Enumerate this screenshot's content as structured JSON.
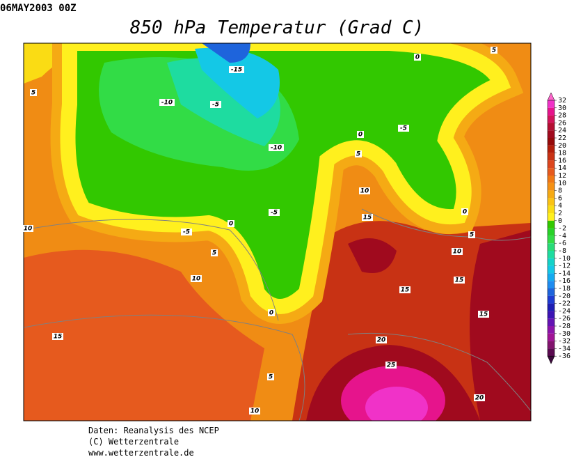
{
  "map": {
    "timestamp": "06MAY2003 00Z",
    "title": "850 hPa Temperatur (Grad C)",
    "contour_labels": [
      -15,
      -10,
      -5,
      -10,
      0,
      5,
      5,
      -5,
      0,
      5,
      10,
      15,
      0,
      5,
      10,
      15,
      15,
      15,
      -5,
      -5,
      0,
      5,
      10,
      10,
      0,
      15,
      20,
      25,
      20,
      5,
      10
    ],
    "colorbar": {
      "levels": [
        32,
        30,
        28,
        26,
        24,
        22,
        20,
        18,
        16,
        14,
        12,
        10,
        8,
        6,
        4,
        2,
        0,
        -2,
        -4,
        -6,
        -8,
        -10,
        -12,
        -14,
        -16,
        -18,
        -20,
        -22,
        -24,
        -26,
        -28,
        -30,
        -32,
        -34,
        -36
      ],
      "colors": [
        "#f032c8",
        "#e6148c",
        "#d2145a",
        "#b40f32",
        "#a00a1e",
        "#960a0a",
        "#b41e0a",
        "#c83214",
        "#dc461e",
        "#e65a1e",
        "#f07814",
        "#f59114",
        "#f5aa14",
        "#fac314",
        "#fadc14",
        "#fff01e",
        "#32c800",
        "#28d228",
        "#32dc46",
        "#28dc78",
        "#1edca0",
        "#14d2c8",
        "#14c8e6",
        "#14aaf0",
        "#1e8cf0",
        "#1e64dc",
        "#1e3cd2",
        "#1e1eb4",
        "#3c14b4",
        "#6414b4",
        "#8c14aa",
        "#a01496",
        "#82146e",
        "#5a0a50"
      ]
    }
  },
  "footer": {
    "lines": [
      "Daten: Reanalysis des NCEP",
      "(C) Wetterzentrale",
      "www.wetterzentrale.de"
    ]
  }
}
